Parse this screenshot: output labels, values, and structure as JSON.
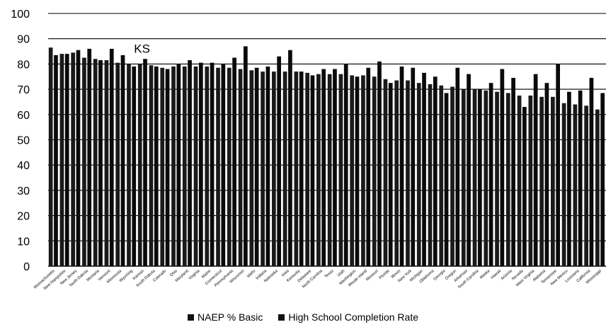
{
  "chart_data": {
    "type": "bar",
    "title": "",
    "xlabel": "",
    "ylabel": "",
    "ylim": [
      0,
      100
    ],
    "yticks": [
      0,
      10,
      20,
      30,
      40,
      50,
      60,
      70,
      80,
      90,
      100
    ],
    "grid": "horizontal",
    "legend_position": "bottom",
    "annotations": [
      {
        "text": "KS",
        "category": "Kansas"
      }
    ],
    "colors": {
      "naep": "#1a1a1a",
      "completion": "#0a0a0a",
      "grid": "#000000"
    },
    "categories": [
      "Massachusetts",
      "New Hampshire",
      "New Jersey",
      "North Dakota",
      "Montana",
      "Vermont",
      "Minnesota",
      "Wyoming",
      "Kansas",
      "South Dakota",
      "Colorado",
      "Ohio",
      "Maryland",
      "Virginia",
      "Maine",
      "Connecticut",
      "Pennsylvania",
      "Wisconsin",
      "Idaho",
      "Indiana",
      "Nebraska",
      "Iowa",
      "Kentucky",
      "Delaware",
      "North Carolina",
      "Texas",
      "Utah",
      "Washington",
      "Rhode Island",
      "Missouri",
      "Florida",
      "Illinois",
      "New York",
      "Michigan",
      "Oklahoma",
      "Georgia",
      "Oregon",
      "Arkansas",
      "South Carolina",
      "Alaska",
      "Hawaii",
      "Arizona",
      "Nevada",
      "West Virginia",
      "Alabama",
      "Tennessee",
      "New Mexico",
      "Louisiana",
      "California",
      "Mississippi"
    ],
    "series": [
      {
        "name": "NAEP % Basic",
        "values": [
          86.5,
          84,
          84.5,
          82.5,
          82,
          81.5,
          80.5,
          80,
          80,
          79.5,
          78.5,
          79,
          79,
          79,
          79,
          78.5,
          78.5,
          78,
          77.5,
          77,
          77,
          77,
          77,
          76.5,
          76,
          76,
          76,
          75.5,
          75.5,
          75,
          74,
          73.5,
          73.5,
          72.5,
          72,
          71.5,
          71,
          70,
          70,
          69.5,
          69,
          68.5,
          67.5,
          67.5,
          67,
          67,
          64.5,
          64,
          63.5,
          62
        ]
      },
      {
        "name": "High School Completion Rate",
        "values": [
          83.5,
          84,
          85.5,
          86,
          81.5,
          86,
          83.5,
          79,
          82,
          79,
          78,
          80,
          81.5,
          80.5,
          80.5,
          80,
          82.5,
          87,
          78.5,
          79,
          83,
          85.5,
          77,
          75.5,
          78,
          78,
          80,
          75,
          78.5,
          81,
          72.5,
          79,
          78.5,
          76.5,
          75,
          68.5,
          78.5,
          76,
          70,
          72.5,
          78,
          74.5,
          63,
          76,
          72.5,
          80,
          69,
          69.5,
          74.5,
          68.5
        ]
      }
    ]
  },
  "legend": {
    "items": [
      "NAEP % Basic",
      "High School Completion Rate"
    ]
  }
}
